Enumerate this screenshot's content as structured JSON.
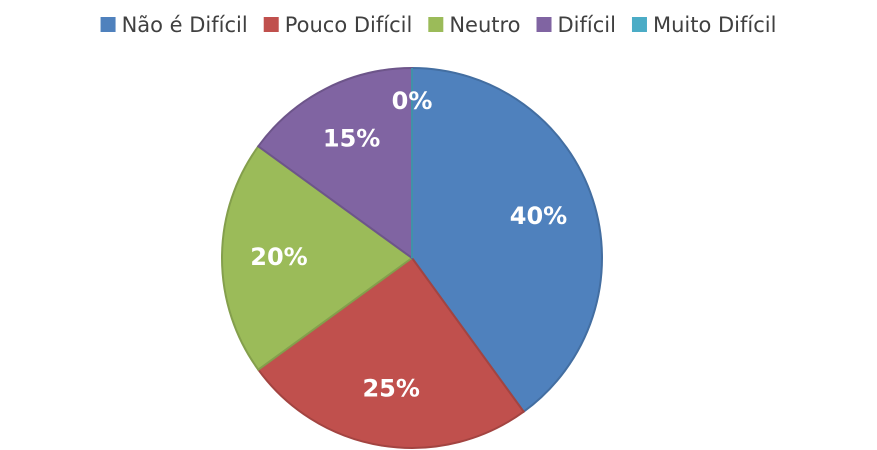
{
  "chart_data": {
    "type": "pie",
    "categories": [
      "Não é Difícil",
      "Pouco Difícil",
      "Neutro",
      "Difícil",
      "Muito Difícil"
    ],
    "values": [
      40,
      25,
      20,
      15,
      0
    ],
    "value_labels": [
      "40%",
      "25%",
      "20%",
      "15%",
      "0%"
    ],
    "colors": [
      "#4f81bd",
      "#c0504d",
      "#9bbb59",
      "#8064a2",
      "#4bacc6"
    ],
    "legend": "top"
  }
}
